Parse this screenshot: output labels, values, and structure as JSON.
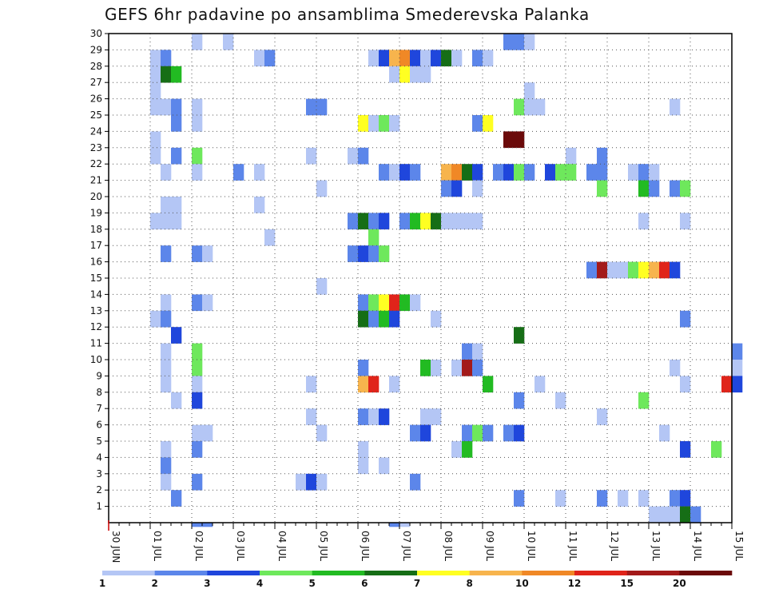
{
  "chart_data": {
    "type": "heatmap",
    "title": "GEFS 6hr padavine po ansamblima Smederevska Palanka",
    "x_ticks": [
      "30 JUN",
      "01 JUL",
      "02 JUL",
      "03 JUL",
      "04 JUL",
      "05 JUL",
      "06 JUL",
      "07 JUL",
      "08 JUL",
      "09 JUL",
      "10 JUL",
      "11 JUL",
      "12 JUL",
      "13 JUL",
      "14 JUL",
      "15 JUL"
    ],
    "x_unit": "6-hour steps from 30 JUN",
    "y_ticks": [
      "1",
      "2",
      "3",
      "4",
      "5",
      "6",
      "7",
      "8",
      "9",
      "10",
      "11",
      "12",
      "13",
      "14",
      "15",
      "16",
      "17",
      "18",
      "19",
      "20",
      "21",
      "22",
      "23",
      "24",
      "25",
      "26",
      "27",
      "28",
      "29",
      "30"
    ],
    "y_range": [
      0,
      30
    ],
    "grid": true,
    "colorbar": {
      "levels": [
        "1",
        "2",
        "3",
        "4",
        "5",
        "6",
        "7",
        "8",
        "10",
        "12",
        "15",
        "20"
      ],
      "colors": [
        "#b4c6f5",
        "#5c86ea",
        "#1f46dc",
        "#6ee85c",
        "#22bb22",
        "#166e16",
        "#ffff22",
        "#f7b44d",
        "#f08826",
        "#e0241a",
        "#a31a1a",
        "#6b0a0a"
      ]
    },
    "cells": [
      [
        8,
        30,
        0
      ],
      [
        11,
        30,
        0
      ],
      [
        38,
        30,
        1
      ],
      [
        39,
        30,
        1
      ],
      [
        40,
        30,
        0
      ],
      [
        4,
        29,
        0
      ],
      [
        5,
        29,
        1
      ],
      [
        14,
        29,
        0
      ],
      [
        15,
        29,
        1
      ],
      [
        25,
        29,
        0
      ],
      [
        26,
        29,
        2
      ],
      [
        27,
        29,
        7
      ],
      [
        28,
        29,
        8
      ],
      [
        29,
        29,
        2
      ],
      [
        30,
        29,
        0
      ],
      [
        31,
        29,
        2
      ],
      [
        32,
        29,
        5
      ],
      [
        33,
        29,
        0
      ],
      [
        35,
        29,
        1
      ],
      [
        36,
        29,
        0
      ],
      [
        4,
        28,
        0
      ],
      [
        5,
        28,
        5
      ],
      [
        6,
        28,
        4
      ],
      [
        27,
        28,
        0
      ],
      [
        28,
        28,
        6
      ],
      [
        29,
        28,
        0
      ],
      [
        30,
        28,
        0
      ],
      [
        4,
        27,
        0
      ],
      [
        40,
        27,
        0
      ],
      [
        4,
        26,
        0
      ],
      [
        5,
        26,
        0
      ],
      [
        6,
        26,
        1
      ],
      [
        8,
        26,
        0
      ],
      [
        19,
        26,
        1
      ],
      [
        20,
        26,
        1
      ],
      [
        39,
        26,
        3
      ],
      [
        40,
        26,
        0
      ],
      [
        41,
        26,
        0
      ],
      [
        54,
        26,
        0
      ],
      [
        6,
        25,
        1
      ],
      [
        8,
        25,
        0
      ],
      [
        24,
        25,
        6
      ],
      [
        25,
        25,
        0
      ],
      [
        26,
        25,
        3
      ],
      [
        27,
        25,
        0
      ],
      [
        35,
        25,
        1
      ],
      [
        36,
        25,
        6
      ],
      [
        4,
        24,
        0
      ],
      [
        38,
        24,
        11
      ],
      [
        39,
        24,
        11
      ],
      [
        4,
        23,
        0
      ],
      [
        6,
        23,
        1
      ],
      [
        8,
        23,
        3
      ],
      [
        19,
        23,
        0
      ],
      [
        23,
        23,
        0
      ],
      [
        24,
        23,
        1
      ],
      [
        44,
        23,
        0
      ],
      [
        47,
        23,
        1
      ],
      [
        5,
        22,
        0
      ],
      [
        8,
        22,
        0
      ],
      [
        12,
        22,
        1
      ],
      [
        14,
        22,
        0
      ],
      [
        26,
        22,
        1
      ],
      [
        27,
        22,
        0
      ],
      [
        28,
        22,
        2
      ],
      [
        29,
        22,
        1
      ],
      [
        32,
        22,
        7
      ],
      [
        33,
        22,
        8
      ],
      [
        34,
        22,
        5
      ],
      [
        35,
        22,
        2
      ],
      [
        37,
        22,
        1
      ],
      [
        38,
        22,
        2
      ],
      [
        39,
        22,
        3
      ],
      [
        40,
        22,
        1
      ],
      [
        42,
        22,
        2
      ],
      [
        43,
        22,
        3
      ],
      [
        44,
        22,
        3
      ],
      [
        46,
        22,
        1
      ],
      [
        47,
        22,
        1
      ],
      [
        50,
        22,
        0
      ],
      [
        51,
        22,
        1
      ],
      [
        52,
        22,
        0
      ],
      [
        20,
        21,
        0
      ],
      [
        32,
        21,
        1
      ],
      [
        33,
        21,
        2
      ],
      [
        35,
        21,
        0
      ],
      [
        47,
        21,
        3
      ],
      [
        51,
        21,
        4
      ],
      [
        52,
        21,
        1
      ],
      [
        54,
        21,
        1
      ],
      [
        55,
        21,
        3
      ],
      [
        5,
        20,
        0
      ],
      [
        6,
        20,
        0
      ],
      [
        14,
        20,
        0
      ],
      [
        4,
        19,
        0
      ],
      [
        5,
        19,
        0
      ],
      [
        6,
        19,
        0
      ],
      [
        23,
        19,
        1
      ],
      [
        24,
        19,
        5
      ],
      [
        25,
        19,
        1
      ],
      [
        26,
        19,
        2
      ],
      [
        28,
        19,
        1
      ],
      [
        29,
        19,
        4
      ],
      [
        30,
        19,
        6
      ],
      [
        31,
        19,
        5
      ],
      [
        32,
        19,
        0
      ],
      [
        33,
        19,
        0
      ],
      [
        34,
        19,
        0
      ],
      [
        35,
        19,
        0
      ],
      [
        51,
        19,
        0
      ],
      [
        55,
        19,
        0
      ],
      [
        15,
        18,
        0
      ],
      [
        25,
        18,
        3
      ],
      [
        5,
        17,
        1
      ],
      [
        8,
        17,
        1
      ],
      [
        9,
        17,
        0
      ],
      [
        23,
        17,
        1
      ],
      [
        24,
        17,
        2
      ],
      [
        25,
        17,
        1
      ],
      [
        26,
        17,
        3
      ],
      [
        46,
        16,
        1
      ],
      [
        47,
        16,
        10
      ],
      [
        48,
        16,
        0
      ],
      [
        49,
        16,
        0
      ],
      [
        50,
        16,
        3
      ],
      [
        51,
        16,
        6
      ],
      [
        52,
        16,
        7
      ],
      [
        53,
        16,
        9
      ],
      [
        54,
        16,
        2
      ],
      [
        20,
        15,
        0
      ],
      [
        5,
        14,
        0
      ],
      [
        8,
        14,
        1
      ],
      [
        9,
        14,
        0
      ],
      [
        24,
        14,
        1
      ],
      [
        25,
        14,
        3
      ],
      [
        26,
        14,
        6
      ],
      [
        27,
        14,
        9
      ],
      [
        28,
        14,
        4
      ],
      [
        29,
        14,
        0
      ],
      [
        4,
        13,
        0
      ],
      [
        5,
        13,
        1
      ],
      [
        24,
        13,
        5
      ],
      [
        25,
        13,
        1
      ],
      [
        26,
        13,
        4
      ],
      [
        27,
        13,
        2
      ],
      [
        31,
        13,
        0
      ],
      [
        55,
        13,
        1
      ],
      [
        6,
        12,
        2
      ],
      [
        39,
        12,
        5
      ],
      [
        5,
        11,
        0
      ],
      [
        8,
        11,
        3
      ],
      [
        34,
        11,
        1
      ],
      [
        35,
        11,
        0
      ],
      [
        60,
        11,
        1
      ],
      [
        5,
        10,
        0
      ],
      [
        8,
        10,
        3
      ],
      [
        24,
        10,
        1
      ],
      [
        30,
        10,
        4
      ],
      [
        31,
        10,
        0
      ],
      [
        33,
        10,
        0
      ],
      [
        34,
        10,
        10
      ],
      [
        35,
        10,
        1
      ],
      [
        54,
        10,
        0
      ],
      [
        60,
        10,
        0
      ],
      [
        5,
        9,
        0
      ],
      [
        8,
        9,
        0
      ],
      [
        19,
        9,
        0
      ],
      [
        24,
        9,
        7
      ],
      [
        25,
        9,
        9
      ],
      [
        27,
        9,
        0
      ],
      [
        36,
        9,
        4
      ],
      [
        41,
        9,
        0
      ],
      [
        55,
        9,
        0
      ],
      [
        59,
        9,
        9
      ],
      [
        60,
        9,
        2
      ],
      [
        6,
        8,
        0
      ],
      [
        8,
        8,
        2
      ],
      [
        39,
        8,
        1
      ],
      [
        43,
        8,
        0
      ],
      [
        51,
        8,
        3
      ],
      [
        19,
        7,
        0
      ],
      [
        24,
        7,
        1
      ],
      [
        25,
        7,
        0
      ],
      [
        26,
        7,
        2
      ],
      [
        30,
        7,
        0
      ],
      [
        31,
        7,
        0
      ],
      [
        47,
        7,
        0
      ],
      [
        8,
        6,
        0
      ],
      [
        9,
        6,
        0
      ],
      [
        20,
        6,
        0
      ],
      [
        29,
        6,
        1
      ],
      [
        30,
        6,
        2
      ],
      [
        34,
        6,
        1
      ],
      [
        35,
        6,
        3
      ],
      [
        36,
        6,
        1
      ],
      [
        38,
        6,
        1
      ],
      [
        39,
        6,
        2
      ],
      [
        53,
        6,
        0
      ],
      [
        5,
        5,
        0
      ],
      [
        8,
        5,
        1
      ],
      [
        24,
        5,
        0
      ],
      [
        33,
        5,
        0
      ],
      [
        34,
        5,
        4
      ],
      [
        55,
        5,
        2
      ],
      [
        58,
        5,
        3
      ],
      [
        5,
        4,
        1
      ],
      [
        24,
        4,
        0
      ],
      [
        26,
        4,
        0
      ],
      [
        5,
        3,
        0
      ],
      [
        8,
        3,
        1
      ],
      [
        18,
        3,
        0
      ],
      [
        19,
        3,
        2
      ],
      [
        20,
        3,
        0
      ],
      [
        29,
        3,
        1
      ],
      [
        6,
        2,
        1
      ],
      [
        39,
        2,
        1
      ],
      [
        43,
        2,
        0
      ],
      [
        47,
        2,
        1
      ],
      [
        49,
        2,
        0
      ],
      [
        51,
        2,
        0
      ],
      [
        54,
        2,
        1
      ],
      [
        55,
        2,
        2
      ],
      [
        52,
        1,
        0
      ],
      [
        53,
        1,
        0
      ],
      [
        54,
        1,
        0
      ],
      [
        55,
        1,
        5
      ],
      [
        56,
        1,
        1
      ],
      [
        8,
        0,
        1
      ],
      [
        9,
        0,
        1
      ],
      [
        27,
        0,
        1
      ],
      [
        28,
        0,
        0
      ]
    ]
  }
}
